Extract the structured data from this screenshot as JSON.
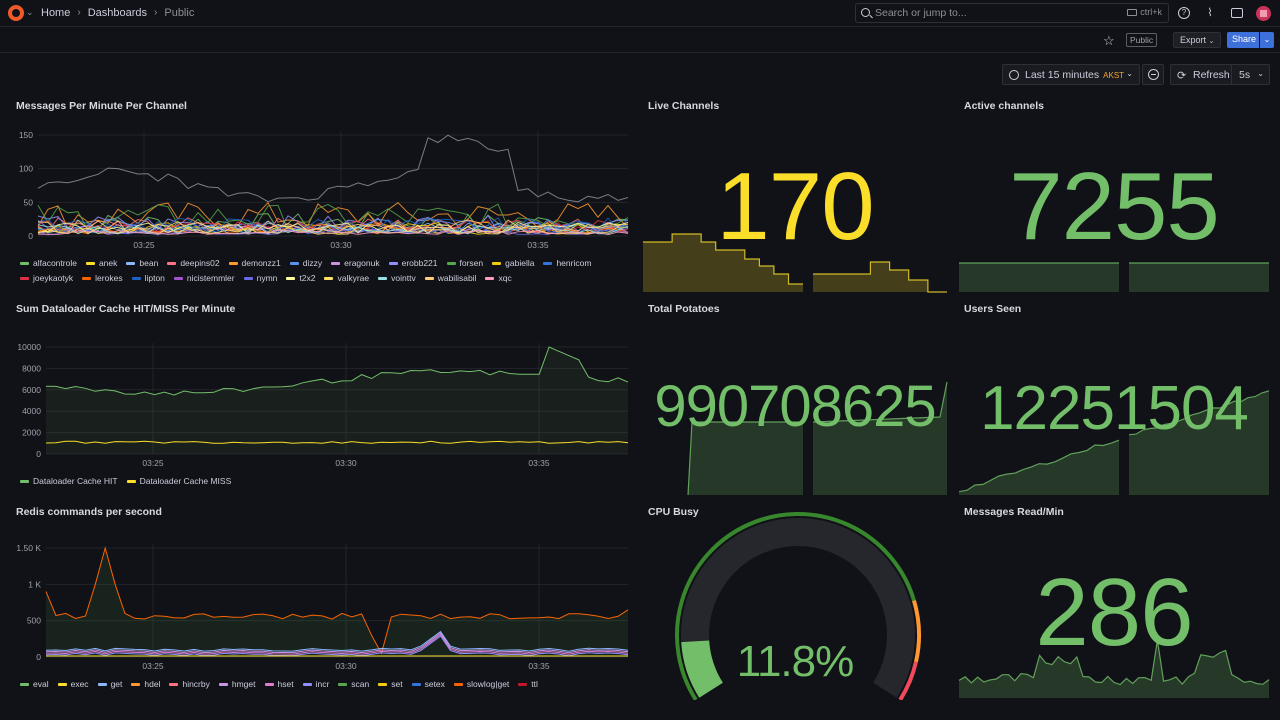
{
  "topbar": {
    "breadcrumbs": [
      "Home",
      "Dashboards",
      "Public"
    ],
    "search_placeholder": "Search or jump to...",
    "search_shortcut": "ctrl+k",
    "icons": [
      "help-icon",
      "rss-icon",
      "monitor-icon",
      "avatar"
    ]
  },
  "toolbar": {
    "public_tag": "Public",
    "export_label": "Export",
    "share_label": "Share",
    "time_range": "Last 15 minutes",
    "timezone": "AKST",
    "refresh_label": "Refresh",
    "refresh_interval": "5s"
  },
  "colors": {
    "green": "#73bf69",
    "yellow": "#fade2a",
    "orange": "#ff9830",
    "red": "#f2495c",
    "blue": "#5794f2",
    "background": "#111217"
  },
  "panels": {
    "messages": {
      "title": "Messages Per Minute Per Channel",
      "y_ticks": [
        "150",
        "100",
        "50",
        "0"
      ],
      "x_ticks": [
        "03:25",
        "03:30",
        "03:35"
      ],
      "legend": [
        {
          "name": "alfacontrole",
          "color": "#73bf69"
        },
        {
          "name": "anek",
          "color": "#fade2a"
        },
        {
          "name": "bean",
          "color": "#8ab8ff"
        },
        {
          "name": "deepins02",
          "color": "#ff7383"
        },
        {
          "name": "demonzz1",
          "color": "#ff9830"
        },
        {
          "name": "dizzy",
          "color": "#5794f2"
        },
        {
          "name": "eragonuk",
          "color": "#ca95e5"
        },
        {
          "name": "erobb221",
          "color": "#8f8fff"
        },
        {
          "name": "forsen",
          "color": "#56a64b"
        },
        {
          "name": "gabiella",
          "color": "#f2cc0c"
        },
        {
          "name": "henricom",
          "color": "#3274d9"
        },
        {
          "name": "joeykaotyk",
          "color": "#e02f44"
        },
        {
          "name": "lerokes",
          "color": "#fa6400"
        },
        {
          "name": "lipton",
          "color": "#1f60c4"
        },
        {
          "name": "nicistemmler",
          "color": "#a352cc"
        },
        {
          "name": "nymn",
          "color": "#6a6ae8"
        },
        {
          "name": "t2x2",
          "color": "#fffb9e"
        },
        {
          "name": "valkyrae",
          "color": "#ffe066"
        },
        {
          "name": "vointtv",
          "color": "#99dfe4"
        },
        {
          "name": "wabilisabil",
          "color": "#ffcb7d"
        },
        {
          "name": "xqc",
          "color": "#ff9ebb"
        }
      ]
    },
    "dataloader": {
      "title": "Sum Dataloader Cache HIT/MISS Per Minute",
      "y_ticks": [
        "10000",
        "8000",
        "6000",
        "4000",
        "2000",
        "0"
      ],
      "x_ticks": [
        "03:25",
        "03:30",
        "03:35"
      ],
      "legend": [
        {
          "name": "Dataloader Cache HIT",
          "color": "#73bf69"
        },
        {
          "name": "Dataloader Cache MISS",
          "color": "#fade2a"
        }
      ]
    },
    "redis": {
      "title": "Redis commands per second",
      "y_ticks": [
        "1.50 K",
        "1 K",
        "500",
        "0"
      ],
      "x_ticks": [
        "03:25",
        "03:30",
        "03:35"
      ],
      "legend": [
        {
          "name": "eval",
          "color": "#73bf69"
        },
        {
          "name": "exec",
          "color": "#fade2a"
        },
        {
          "name": "get",
          "color": "#8ab8ff"
        },
        {
          "name": "hdel",
          "color": "#ff9830"
        },
        {
          "name": "hincrby",
          "color": "#ff7383"
        },
        {
          "name": "hmget",
          "color": "#ca95e5"
        },
        {
          "name": "hset",
          "color": "#e07dd1"
        },
        {
          "name": "incr",
          "color": "#8f8fff"
        },
        {
          "name": "scan",
          "color": "#56a64b"
        },
        {
          "name": "set",
          "color": "#f2cc0c"
        },
        {
          "name": "setex",
          "color": "#3274d9"
        },
        {
          "name": "slowlog|get",
          "color": "#fa6400"
        },
        {
          "name": "ttl",
          "color": "#c4162a"
        }
      ]
    },
    "live_channels": {
      "title": "Live Channels",
      "value": "170",
      "color": "#fade2a"
    },
    "active_channels": {
      "title": "Active channels",
      "value": "7255",
      "color": "#73bf69"
    },
    "total_potatoes": {
      "title": "Total Potatoes",
      "value": "990708625",
      "color": "#73bf69"
    },
    "users_seen": {
      "title": "Users Seen",
      "value": "12251504",
      "color": "#73bf69"
    },
    "cpu_busy": {
      "title": "CPU Busy",
      "value": "11.8%",
      "fraction": 0.118,
      "color": "#73bf69"
    },
    "messages_read": {
      "title": "Messages Read/Min",
      "value": "286",
      "color": "#73bf69"
    }
  }
}
